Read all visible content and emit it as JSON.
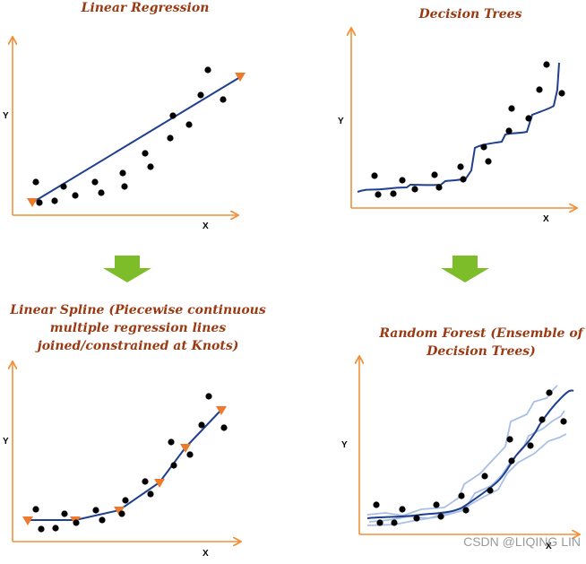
{
  "panels": {
    "linear_regression": {
      "title": "Linear Regression",
      "x_label": "X",
      "y_label": "Y"
    },
    "decision_trees": {
      "title": "Decision Trees",
      "x_label": "X",
      "y_label": "Y"
    },
    "linear_spline": {
      "title_lines": [
        "Linear Spline (Piecewise continuous",
        "multiple regression lines",
        "joined/constrained at Knots)"
      ],
      "x_label": "X",
      "y_label": "Y"
    },
    "random_forest": {
      "title_lines": [
        "Random Forest (Ensemble of",
        "Decision Trees)"
      ],
      "x_label": "X",
      "y_label": "Y"
    }
  },
  "watermark": "CSDN @LIQING LIN",
  "colors": {
    "title": "#9a3a12",
    "axis": "#f0913a",
    "fit_line": "#1f3f8f",
    "ensemble_line": "#a9c0e6",
    "knot": "#ee7b2b",
    "arrow": "#7ebd2a",
    "point": "#000000"
  }
}
